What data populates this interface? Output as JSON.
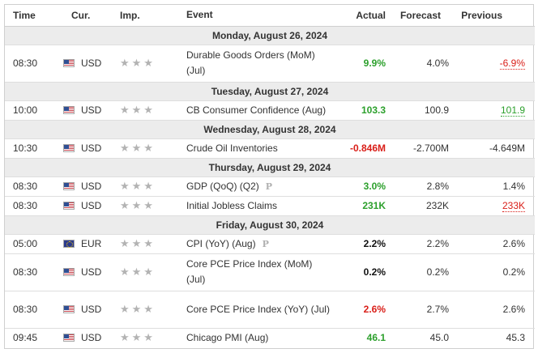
{
  "header": {
    "time": "Time",
    "currency": "Cur.",
    "importance": "Imp.",
    "event": "Event",
    "actual": "Actual",
    "forecast": "Forecast",
    "previous": "Previous"
  },
  "icons": {
    "importance": "star-icon",
    "preliminary": "p-icon"
  },
  "colors": {
    "positive": "#2ca02c",
    "negative": "#d91e18",
    "day_bg": "#ececec"
  },
  "days": [
    {
      "label": "Monday, August 26, 2024",
      "events": [
        {
          "time": "08:30",
          "currency": "USD",
          "flag": "us-flag-icon",
          "event": "Durable Goods Orders (MoM) (Jul)",
          "actual": "9.9%",
          "actual_color": "green",
          "forecast": "4.0%",
          "previous": "-6.9%",
          "previous_color": "red",
          "tall": true
        }
      ]
    },
    {
      "label": "Tuesday, August 27, 2024",
      "events": [
        {
          "time": "10:00",
          "currency": "USD",
          "flag": "us-flag-icon",
          "event": "CB Consumer Confidence (Aug)",
          "actual": "103.3",
          "actual_color": "green",
          "forecast": "100.9",
          "previous": "101.9",
          "previous_color": "green"
        }
      ]
    },
    {
      "label": "Wednesday, August 28, 2024",
      "events": [
        {
          "time": "10:30",
          "currency": "USD",
          "flag": "us-flag-icon",
          "event": "Crude Oil Inventories",
          "actual": "-0.846M",
          "actual_color": "red",
          "forecast": "-2.700M",
          "previous": "-4.649M",
          "previous_color": "black"
        }
      ]
    },
    {
      "label": "Thursday, August 29, 2024",
      "events": [
        {
          "time": "08:30",
          "currency": "USD",
          "flag": "us-flag-icon",
          "event": "GDP (QoQ) (Q2)",
          "preliminary": "P",
          "actual": "3.0%",
          "actual_color": "green",
          "forecast": "2.8%",
          "previous": "1.4%",
          "previous_color": "black"
        },
        {
          "time": "08:30",
          "currency": "USD",
          "flag": "us-flag-icon",
          "event": "Initial Jobless Claims",
          "actual": "231K",
          "actual_color": "green",
          "forecast": "232K",
          "previous": "233K",
          "previous_color": "red"
        }
      ]
    },
    {
      "label": "Friday, August 30, 2024",
      "events": [
        {
          "time": "05:00",
          "currency": "EUR",
          "flag": "eu-flag-icon",
          "event": "CPI (YoY) (Aug)",
          "preliminary": "P",
          "actual": "2.2%",
          "actual_color": "black",
          "forecast": "2.2%",
          "previous": "2.6%",
          "previous_color": "black"
        },
        {
          "time": "08:30",
          "currency": "USD",
          "flag": "us-flag-icon",
          "event": "Core PCE Price Index (MoM) (Jul)",
          "actual": "0.2%",
          "actual_color": "black",
          "forecast": "0.2%",
          "previous": "0.2%",
          "previous_color": "black",
          "tall": true
        },
        {
          "time": "08:30",
          "currency": "USD",
          "flag": "us-flag-icon",
          "event": "Core PCE Price Index (YoY) (Jul)",
          "actual": "2.6%",
          "actual_color": "red",
          "forecast": "2.7%",
          "previous": "2.6%",
          "previous_color": "black",
          "tall": true
        },
        {
          "time": "09:45",
          "currency": "USD",
          "flag": "us-flag-icon",
          "event": "Chicago PMI (Aug)",
          "actual": "46.1",
          "actual_color": "green",
          "forecast": "45.0",
          "previous": "45.3",
          "previous_color": "black"
        }
      ]
    }
  ]
}
